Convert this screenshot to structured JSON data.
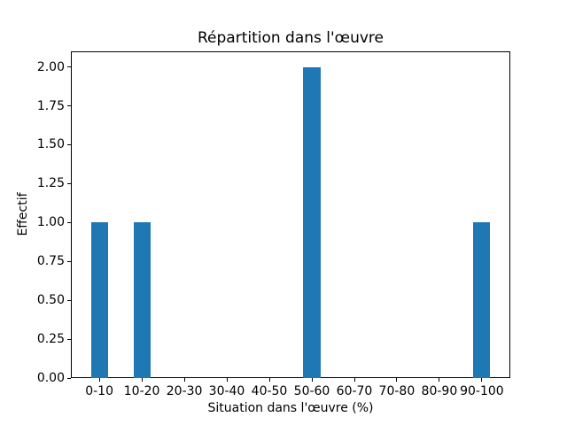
{
  "figure": {
    "background": "#ffffff",
    "frame_color": "#000000",
    "text_color": "#000000"
  },
  "chart_data": {
    "type": "bar",
    "title": "Répartition dans l'œuvre",
    "xlabel": "Situation dans l'œuvre (%)",
    "ylabel": "Effectif",
    "categories": [
      "0-10",
      "10-20",
      "20-30",
      "30-40",
      "40-50",
      "50-60",
      "60-70",
      "70-80",
      "80-90",
      "90-100"
    ],
    "values": [
      1,
      1,
      0,
      0,
      0,
      2,
      0,
      0,
      0,
      1
    ],
    "bar_color": "#1f77b4",
    "bar_width": 0.4,
    "yticks": [
      0,
      0.25,
      0.5,
      0.75,
      1,
      1.25,
      1.5,
      1.75,
      2
    ],
    "ytick_labels": [
      "0.00",
      "0.25",
      "0.50",
      "0.75",
      "1.00",
      "1.25",
      "1.50",
      "1.75",
      "2.00"
    ],
    "xlim": [
      -0.67,
      9.67
    ],
    "ylim": [
      0,
      2.1
    ],
    "grid": false,
    "legend_position": "none"
  }
}
